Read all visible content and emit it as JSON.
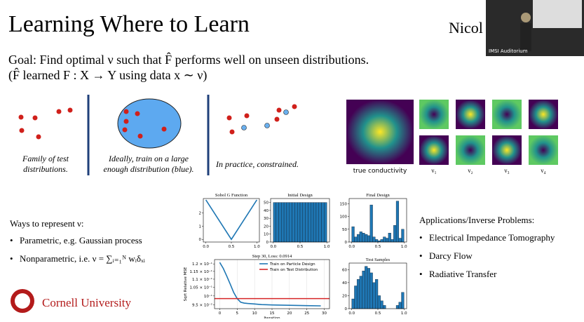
{
  "slide": {
    "title": "Learning Where to Learn",
    "presenter": "Nicol",
    "video_label": "IMSI Auditorium",
    "goal_line1": "Goal: Find optimal ν such that F̂ performs well on unseen distributions.",
    "goal_line2": "(F̂ learned F : X → Y using data x ∼ ν)",
    "panels": [
      "Family of test",
      "distributions.",
      "Ideally, train on a large",
      "enough distribution (blue).",
      "In practice, constrained."
    ],
    "conductivity_labels": [
      "true conductivity",
      "ν₁",
      "ν₂",
      "ν₃",
      "ν₄"
    ],
    "ways_heading": "Ways to represent ν:",
    "ways": [
      "Parametric, e.g. Gaussian process",
      "Nonparametric, i.e. ν = ∑ᵢ₌₁ᴺ wᵢδₓᵢ"
    ],
    "applications_heading": "Applications/Inverse Problems:",
    "applications": [
      "Electrical Impedance Tomography",
      "Darcy Flow",
      "Radiative Transfer"
    ],
    "logo": "Cornell University"
  },
  "plots": [
    {
      "type": "line",
      "title": "Sobol G Function",
      "xlim": [
        -0.05,
        1.05
      ],
      "ylim": [
        -0.2,
        3.1
      ],
      "xticks": [
        {
          "value": 0,
          "label": "0.0"
        },
        {
          "value": 0.5,
          "label": "0.5"
        },
        {
          "value": 1,
          "label": "1.0"
        }
      ],
      "yticks": [
        0,
        1,
        2
      ],
      "series": [
        {
          "color": "#1f77b4",
          "x": [
            0,
            0.5,
            1
          ],
          "values": [
            3,
            0,
            3
          ]
        }
      ]
    },
    {
      "type": "histogram",
      "title": "Initial Design",
      "color": "#1f77b4",
      "xlim": [
        -0.05,
        1.05
      ],
      "ylim": [
        0,
        55
      ],
      "xticks": [
        {
          "value": 0,
          "label": "0.0"
        },
        {
          "value": 0.5,
          "label": "0.5"
        },
        {
          "value": 1,
          "label": "1.0"
        }
      ],
      "yticks": [
        0,
        10,
        20,
        30,
        40,
        50
      ],
      "bins": [
        0,
        0.05,
        0.1,
        0.15,
        0.2,
        0.25,
        0.3,
        0.35,
        0.4,
        0.45,
        0.5,
        0.55,
        0.6,
        0.65,
        0.7,
        0.75,
        0.8,
        0.85,
        0.9,
        0.95,
        1
      ],
      "values": [
        50,
        50,
        50,
        50,
        50,
        50,
        50,
        50,
        50,
        50,
        50,
        50,
        50,
        50,
        50,
        50,
        50,
        50,
        50,
        50
      ]
    },
    {
      "type": "histogram",
      "title": "Final Design",
      "color": "#1f77b4",
      "xlim": [
        -0.05,
        1.05
      ],
      "ylim": [
        0,
        170
      ],
      "xticks": [
        {
          "value": 0,
          "label": "0.0"
        },
        {
          "value": 0.5,
          "label": "0.5"
        },
        {
          "value": 1,
          "label": "1.0"
        }
      ],
      "yticks": [
        0,
        50,
        100,
        150
      ],
      "bins": [
        0,
        0.05,
        0.1,
        0.15,
        0.2,
        0.25,
        0.3,
        0.35,
        0.4,
        0.45,
        0.5,
        0.55,
        0.6,
        0.65,
        0.7,
        0.75,
        0.8,
        0.85,
        0.9,
        0.95,
        1
      ],
      "values": [
        60,
        20,
        30,
        40,
        35,
        30,
        25,
        145,
        20,
        10,
        5,
        10,
        20,
        15,
        35,
        10,
        65,
        160,
        15,
        50
      ]
    },
    {
      "type": "line",
      "title": "Step 30, Loss: 0.0914",
      "xlabel": "Iteration",
      "ylabel": "Sqrt Relative MSE",
      "log_y": true,
      "grid": true,
      "xlim": [
        -1.5,
        31.5
      ],
      "ylim": [
        0.093,
        0.123
      ],
      "xticks": [
        0,
        5,
        10,
        15,
        20,
        25,
        30
      ],
      "yticks": [
        {
          "value": 0.12,
          "label": "1.2 × 10⁻¹"
        },
        {
          "value": 0.115,
          "label": "1.15 × 10⁻¹"
        },
        {
          "value": 0.11,
          "label": "1.1 × 10⁻¹"
        },
        {
          "value": 0.105,
          "label": "1.05 × 10⁻¹"
        },
        {
          "value": 0.1,
          "label": "10⁻¹"
        },
        {
          "value": 0.095,
          "label": "9.5 × 10⁻²"
        }
      ],
      "series": [
        {
          "name": "Train on Particle Design",
          "color": "#1f77b4",
          "x": [
            0,
            1,
            2,
            3,
            4,
            5,
            6,
            7,
            8,
            10,
            12,
            15,
            20,
            25,
            29
          ],
          "values": [
            0.121,
            0.117,
            0.112,
            0.107,
            0.102,
            0.0985,
            0.0965,
            0.096,
            0.0958,
            0.0955,
            0.0952,
            0.095,
            0.0948,
            0.0946,
            0.0945
          ]
        },
        {
          "name": "Train on Test Distribution",
          "color": "#d62728",
          "x": [
            -1.5,
            31.5
          ],
          "values": [
            0.0985,
            0.0985
          ]
        }
      ]
    },
    {
      "type": "histogram",
      "title": "Test Samples",
      "color": "#1f77b4",
      "xlim": [
        -0.05,
        1.05
      ],
      "ylim": [
        0,
        70
      ],
      "xticks": [
        {
          "value": 0,
          "label": "0.0"
        },
        {
          "value": 0.5,
          "label": "0.5"
        },
        {
          "value": 1,
          "label": "1.0"
        }
      ],
      "yticks": [
        0,
        20,
        40,
        60
      ],
      "bins": [
        0,
        0.05,
        0.1,
        0.15,
        0.2,
        0.25,
        0.3,
        0.35,
        0.4,
        0.45,
        0.5,
        0.55,
        0.6,
        0.65,
        0.7,
        0.75,
        0.8,
        0.85,
        0.9,
        0.95,
        1
      ],
      "values": [
        15,
        35,
        45,
        50,
        58,
        65,
        62,
        55,
        40,
        45,
        20,
        12,
        5,
        0,
        0,
        0,
        0,
        5,
        10,
        25
      ]
    }
  ]
}
